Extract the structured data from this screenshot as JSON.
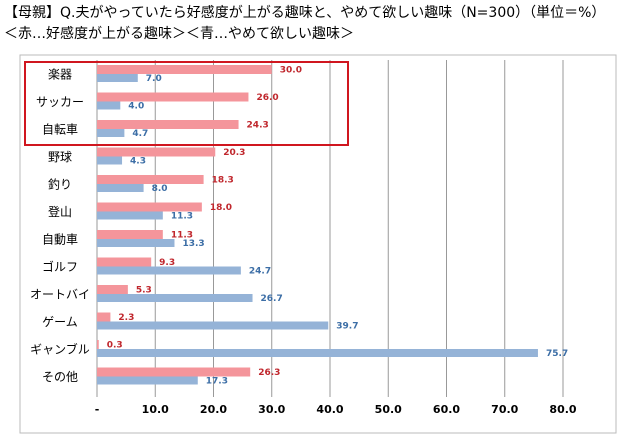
{
  "chart_data": {
    "type": "bar",
    "orientation": "horizontal",
    "title": "【母親】Q.夫がやっていたら好感度が上がる趣味と、やめて欲しい趣味（N=300）（単位＝%）",
    "subtitle": "＜赤…好感度が上がる趣味＞＜青…やめて欲しい趣味＞",
    "categories": [
      "楽器",
      "サッカー",
      "自転車",
      "野球",
      "釣り",
      "登山",
      "自動車",
      "ゴルフ",
      "オートバイ",
      "ゲーム",
      "ギャンブル",
      "その他"
    ],
    "series": [
      {
        "color": "#f4959b",
        "label_color": "#c0272d",
        "values": [
          30,
          26,
          24.3,
          20.3,
          18.3,
          18,
          11.3,
          9.3,
          5.3,
          2.3,
          0.3,
          26.3
        ],
        "value_labels": [
          "30.0",
          "26.0",
          "24.3",
          "20.3",
          "18.3",
          "18.0",
          "11.3",
          "9.3",
          "5.3",
          "2.3",
          "0.3",
          "26.3"
        ]
      },
      {
        "color": "#95b3d7",
        "label_color": "#3c6ea6",
        "values": [
          7,
          4,
          4.7,
          4.3,
          8,
          11.3,
          13.3,
          24.7,
          26.7,
          39.7,
          75.7,
          17.3
        ],
        "value_labels": [
          "7.0",
          "4.0",
          "4.7",
          "4.3",
          "8.0",
          "11.3",
          "13.3",
          "24.7",
          "26.7",
          "39.7",
          "75.7",
          "17.3"
        ]
      }
    ],
    "xlim": [
      0,
      80
    ],
    "xticks": [
      {
        "value": 0,
        "label": "-"
      },
      {
        "value": 10,
        "label": "10.0"
      },
      {
        "value": 20,
        "label": "20.0"
      },
      {
        "value": 30,
        "label": "30.0"
      },
      {
        "value": 40,
        "label": "40.0"
      },
      {
        "value": 50,
        "label": "50.0"
      },
      {
        "value": 60,
        "label": "60.0"
      },
      {
        "value": 70,
        "label": "70.0"
      },
      {
        "value": 80,
        "label": "80.0"
      }
    ],
    "grid": true
  }
}
